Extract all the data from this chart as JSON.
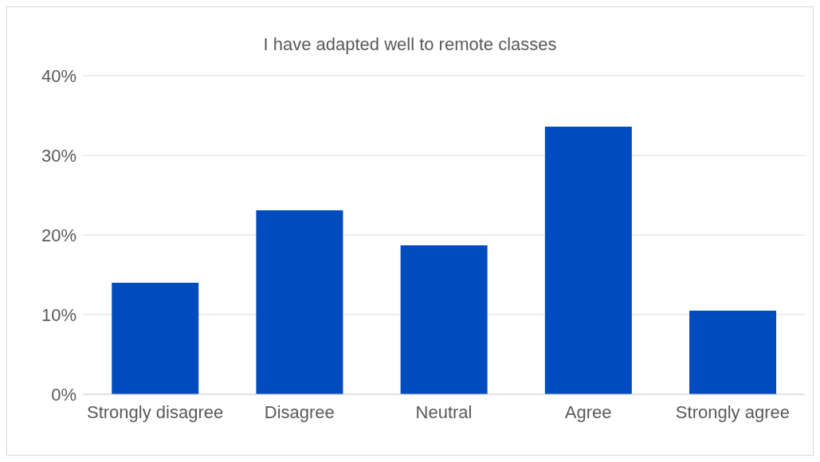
{
  "chart_data": {
    "type": "bar",
    "title": "I have adapted well to remote classes",
    "categories": [
      "Strongly disagree",
      "Disagree",
      "Neutral",
      "Agree",
      "Strongly agree"
    ],
    "values": [
      14.0,
      23.1,
      18.7,
      33.6,
      10.5
    ],
    "color": "#004cbe",
    "ylim": [
      0,
      40
    ],
    "yticks": [
      {
        "value": 0,
        "label": "0%"
      },
      {
        "value": 10,
        "label": "10%"
      },
      {
        "value": 20,
        "label": "20%"
      },
      {
        "value": 30,
        "label": "30%"
      },
      {
        "value": 40,
        "label": "40%"
      }
    ],
    "grid": "y"
  }
}
